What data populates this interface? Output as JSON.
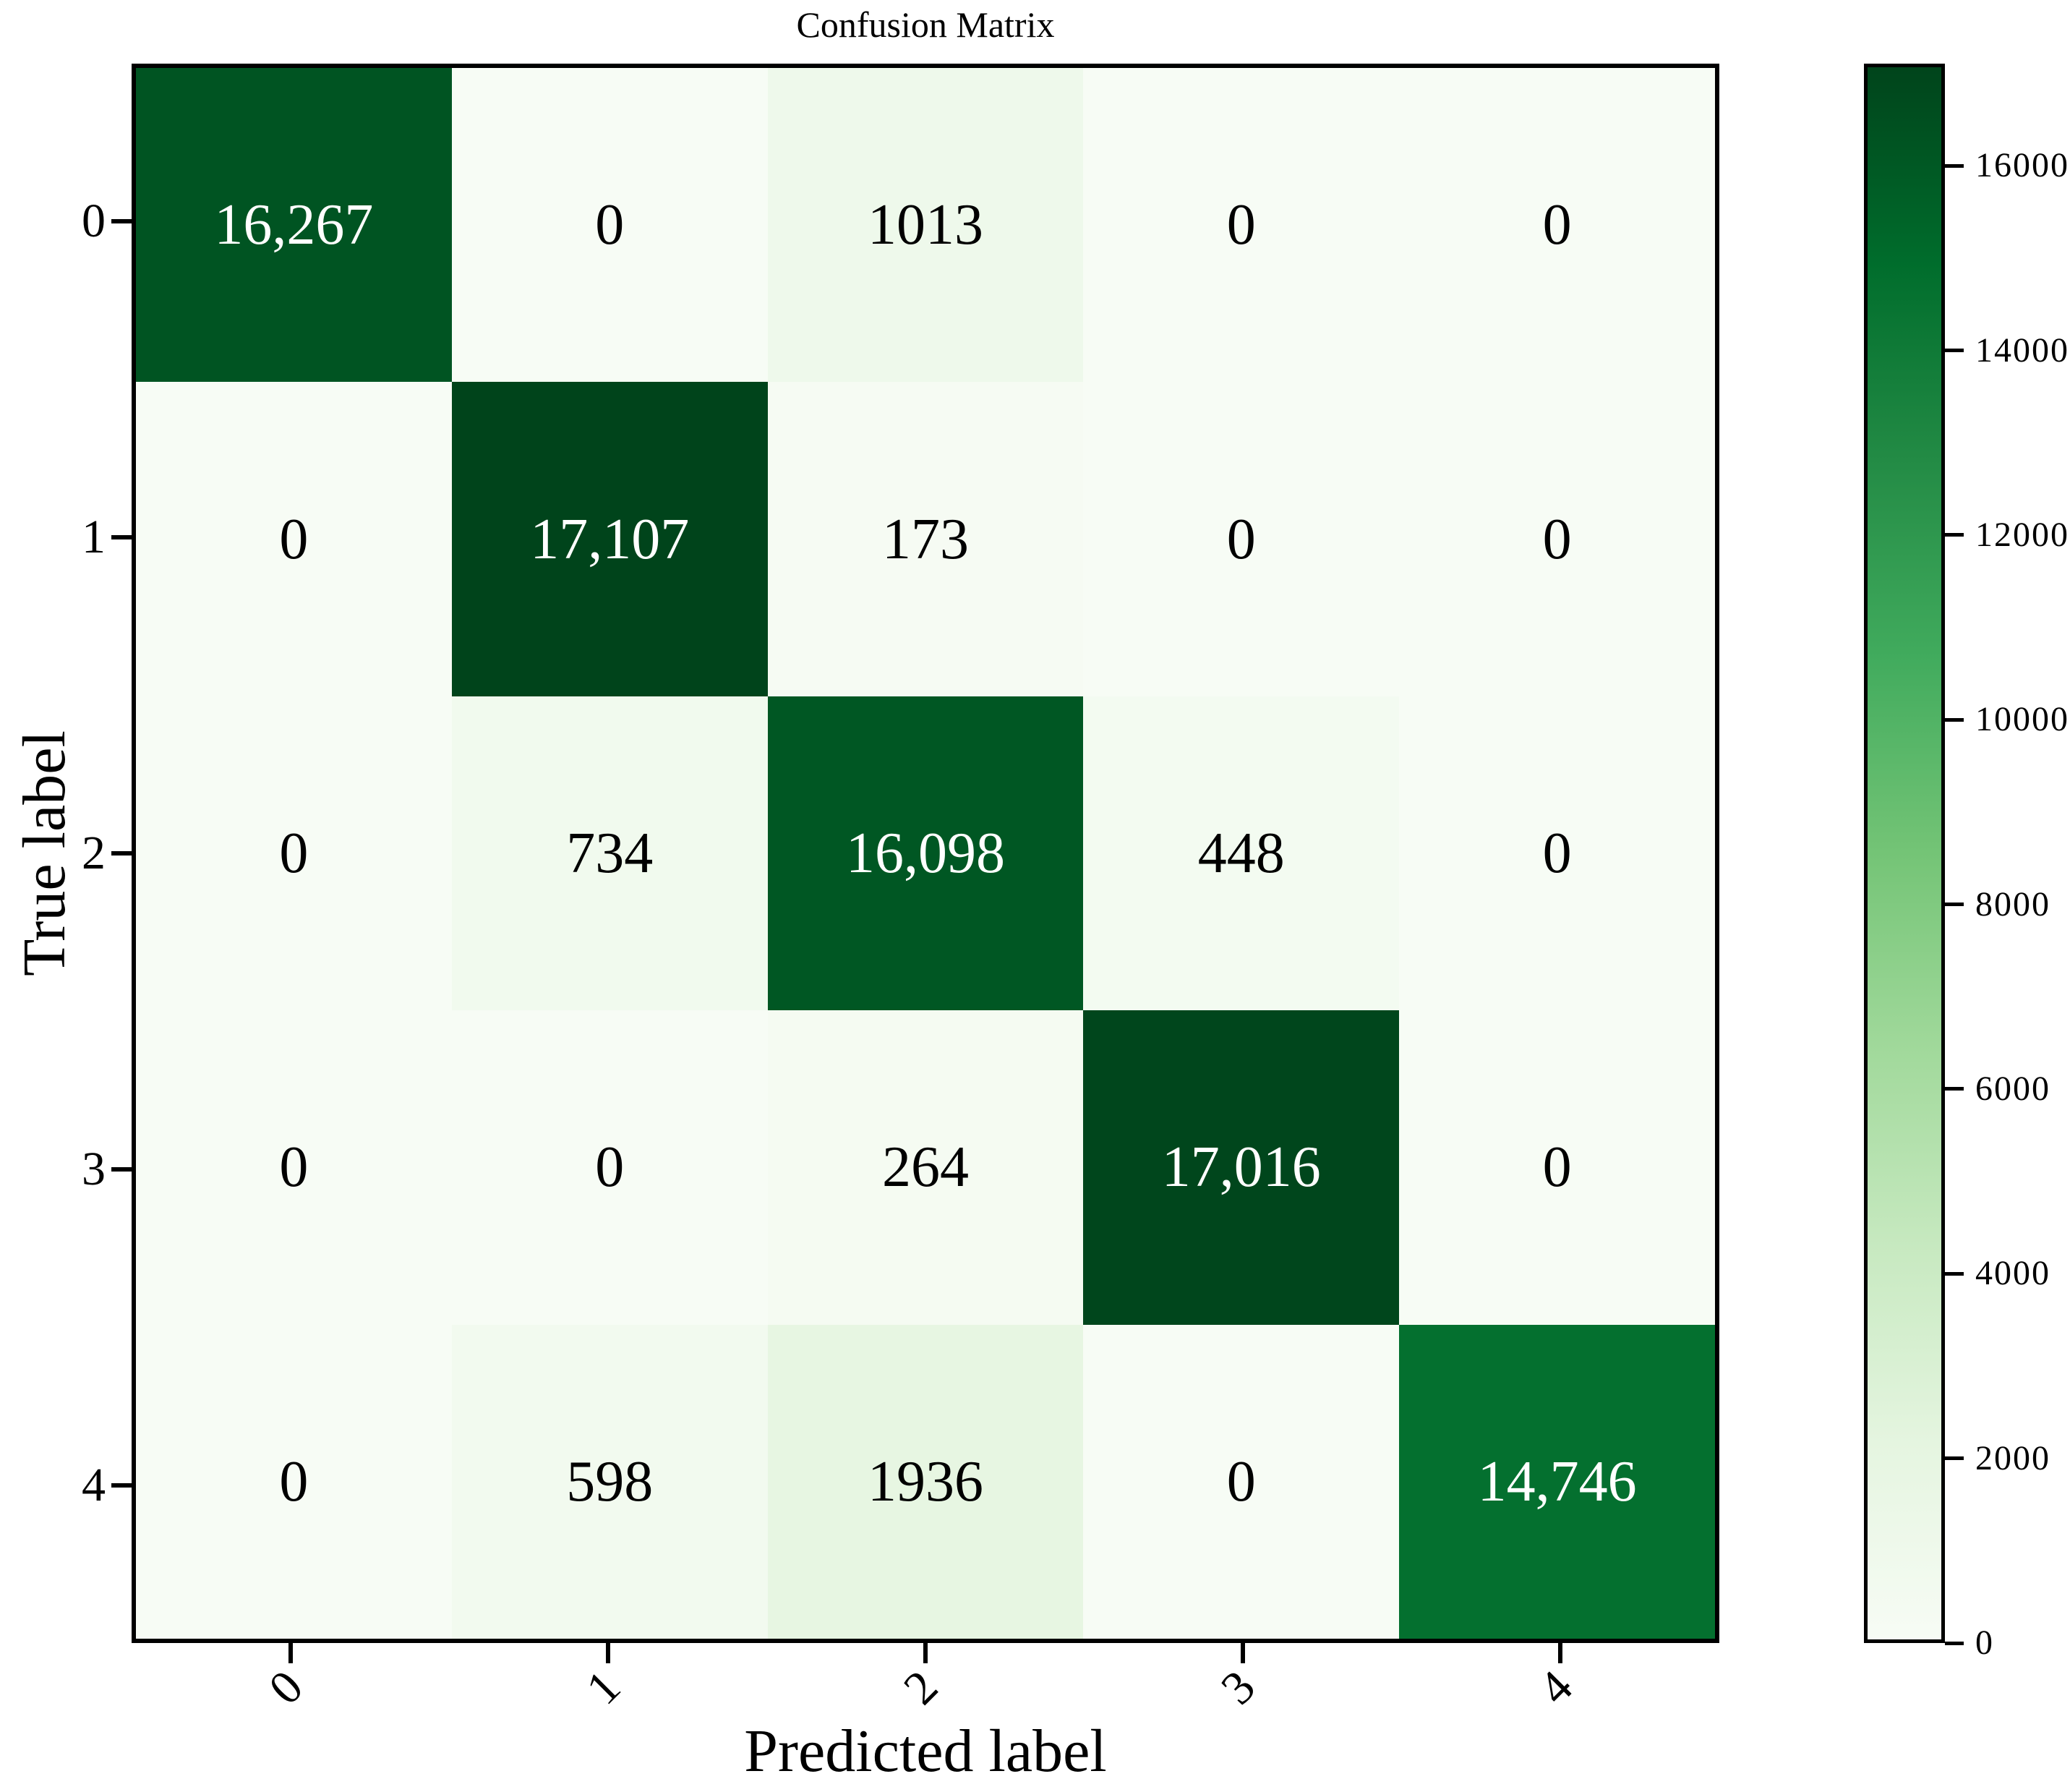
{
  "figure": {
    "title": "Confusion Matrix",
    "xlabel": "Predicted label",
    "ylabel": "True label"
  },
  "chart_data": {
    "type": "heatmap",
    "title": "Confusion Matrix",
    "xlabel": "Predicted label",
    "ylabel": "True label",
    "x_tick_labels": [
      "0",
      "1",
      "2",
      "3",
      "4"
    ],
    "y_tick_labels": [
      "0",
      "1",
      "2",
      "3",
      "4"
    ],
    "matrix": [
      [
        16267,
        0,
        1013,
        0,
        0
      ],
      [
        0,
        17107,
        173,
        0,
        0
      ],
      [
        0,
        734,
        16098,
        448,
        0
      ],
      [
        0,
        0,
        264,
        17016,
        0
      ],
      [
        0,
        598,
        1936,
        0,
        14746
      ]
    ],
    "cell_labels": [
      [
        "16,267",
        "0",
        "1013",
        "0",
        "0"
      ],
      [
        "0",
        "17,107",
        "173",
        "0",
        "0"
      ],
      [
        "0",
        "734",
        "16,098",
        "448",
        "0"
      ],
      [
        "0",
        "0",
        "264",
        "17,016",
        "0"
      ],
      [
        "0",
        "598",
        "1936",
        "0",
        "14,746"
      ]
    ],
    "colormap": "Greens",
    "vmin": 0,
    "vmax": 17107,
    "colorbar_ticks": [
      0,
      2000,
      4000,
      6000,
      8000,
      10000,
      12000,
      14000,
      16000
    ],
    "colorbar_tick_labels": [
      "0",
      "2000",
      "4000",
      "6000",
      "8000",
      "10000",
      "12000",
      "14000",
      "16000"
    ],
    "colorbar_position": "right",
    "grid": false,
    "x_tick_rotation_deg": 45
  },
  "colors": {
    "background": "#ffffff",
    "spine": "#000000",
    "annotation_on_dark": "#ffffff",
    "annotation_on_light": "#000000",
    "greens_colormap_anchors": [
      "#f7fcf5",
      "#e5f5e0",
      "#c7e9c0",
      "#a1d99b",
      "#74c476",
      "#41ab5d",
      "#238b45",
      "#006d2c",
      "#00441b"
    ]
  }
}
